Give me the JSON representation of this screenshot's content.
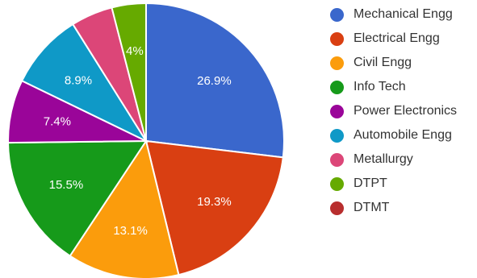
{
  "chart_data": {
    "type": "pie",
    "title": "",
    "start_angle_deg": 0,
    "slices": [
      {
        "label": "Mechanical Engg",
        "value": 26.9,
        "display": "26.9%",
        "color": "#3a67cc"
      },
      {
        "label": "Electrical Engg",
        "value": 19.3,
        "display": "19.3%",
        "color": "#d93f12"
      },
      {
        "label": "Civil Engg",
        "value": 13.1,
        "display": "13.1%",
        "color": "#fb9c0c"
      },
      {
        "label": "Info Tech",
        "value": 15.5,
        "display": "15.5%",
        "color": "#169a1a"
      },
      {
        "label": "Power Electronics",
        "value": 7.4,
        "display": "7.4%",
        "color": "#9a0599"
      },
      {
        "label": "Automobile Engg",
        "value": 8.9,
        "display": "8.9%",
        "color": "#0f99c7"
      },
      {
        "label": "Metallurgy",
        "value": 4.9,
        "display": "",
        "color": "#dc4678"
      },
      {
        "label": "DTPT",
        "value": 4.0,
        "display": "4%",
        "color": "#66aa00"
      },
      {
        "label": "DTMT",
        "value": 0.0,
        "display": "",
        "color": "#b82e2e"
      }
    ],
    "legend_position": "right"
  }
}
